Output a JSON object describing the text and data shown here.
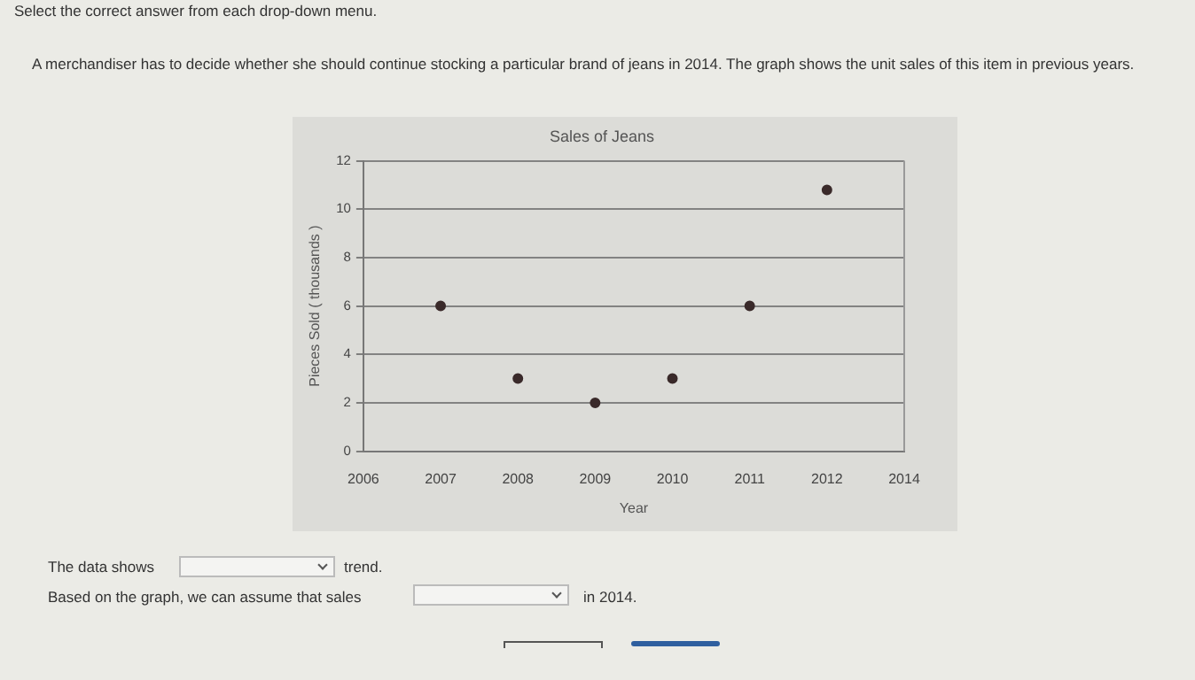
{
  "chart_data": {
    "type": "scatter",
    "title": "Sales of Jeans",
    "xlabel": "Year",
    "ylabel": "Pieces Sold ( thousands )",
    "categories": [
      "2006",
      "2007",
      "2008",
      "2009",
      "2010",
      "2011",
      "2012",
      "2014"
    ],
    "values": [
      null,
      6,
      3,
      2,
      3,
      6,
      10.8,
      null
    ],
    "color": "#3a2a2a",
    "marker": "circle",
    "ylim": [
      0,
      12
    ],
    "yticks": [
      0,
      2,
      4,
      6,
      8,
      10,
      12
    ],
    "grid": "y",
    "legend": false,
    "annotations": [
      "Select the correct answer from each drop-down menu.",
      "A merchandiser has to decide whether she should continue stocking a particular brand of jeans in 2014. The graph shows the unit sales of this item in previous years.",
      "The data shows",
      "trend.",
      "Based on the graph, we can assume that sales",
      "in 2014."
    ]
  }
}
